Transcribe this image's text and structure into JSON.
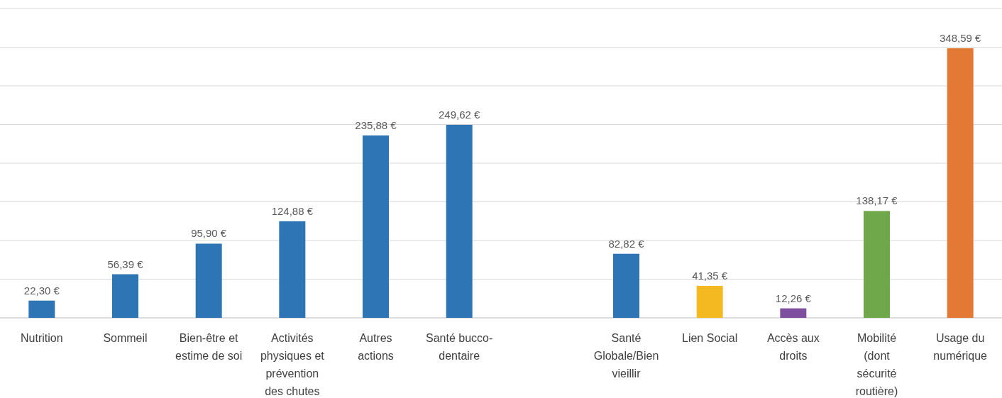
{
  "chart_data": {
    "type": "bar",
    "categories": [
      "Nutrition",
      "Sommeil",
      "Bien-être et estime de soi",
      "Activités physiques et prévention des chutes",
      "Autres actions",
      "Santé bucco-dentaire",
      null,
      "Santé Globale/Bien vieillir",
      "Lien Social",
      "Accès aux droits",
      "Mobilité (dont sécurité routière)",
      "Usage du numérique"
    ],
    "values": [
      22.3,
      56.39,
      95.9,
      124.88,
      235.88,
      249.62,
      null,
      82.82,
      41.35,
      12.26,
      138.17,
      348.59
    ],
    "value_labels": [
      "22,30 €",
      "56,39 €",
      "95,90 €",
      "124,88 €",
      "235,88 €",
      "249,62 €",
      null,
      "82,82 €",
      "41,35 €",
      "12,26 €",
      "138,17 €",
      "348,59 €"
    ],
    "colors": [
      "#2e75b6",
      "#2e75b6",
      "#2e75b6",
      "#2e75b6",
      "#2e75b6",
      "#2e75b6",
      null,
      "#2e75b6",
      "#f4b920",
      "#7f4f9f",
      "#6fa84a",
      "#e37934"
    ],
    "ylim": [
      0,
      400
    ],
    "yticks": [
      {
        "value": 0,
        "label": null
      },
      {
        "value": 50,
        "label": null
      },
      {
        "value": 100,
        "label": null
      },
      {
        "value": 150,
        "label": null
      },
      {
        "value": 200,
        "label": null
      },
      {
        "value": 250,
        "label": null
      },
      {
        "value": 300,
        "label": null
      },
      {
        "value": 350,
        "label": null
      },
      {
        "value": 400,
        "label": null
      }
    ],
    "grid": "y",
    "tick_labels": "x"
  }
}
